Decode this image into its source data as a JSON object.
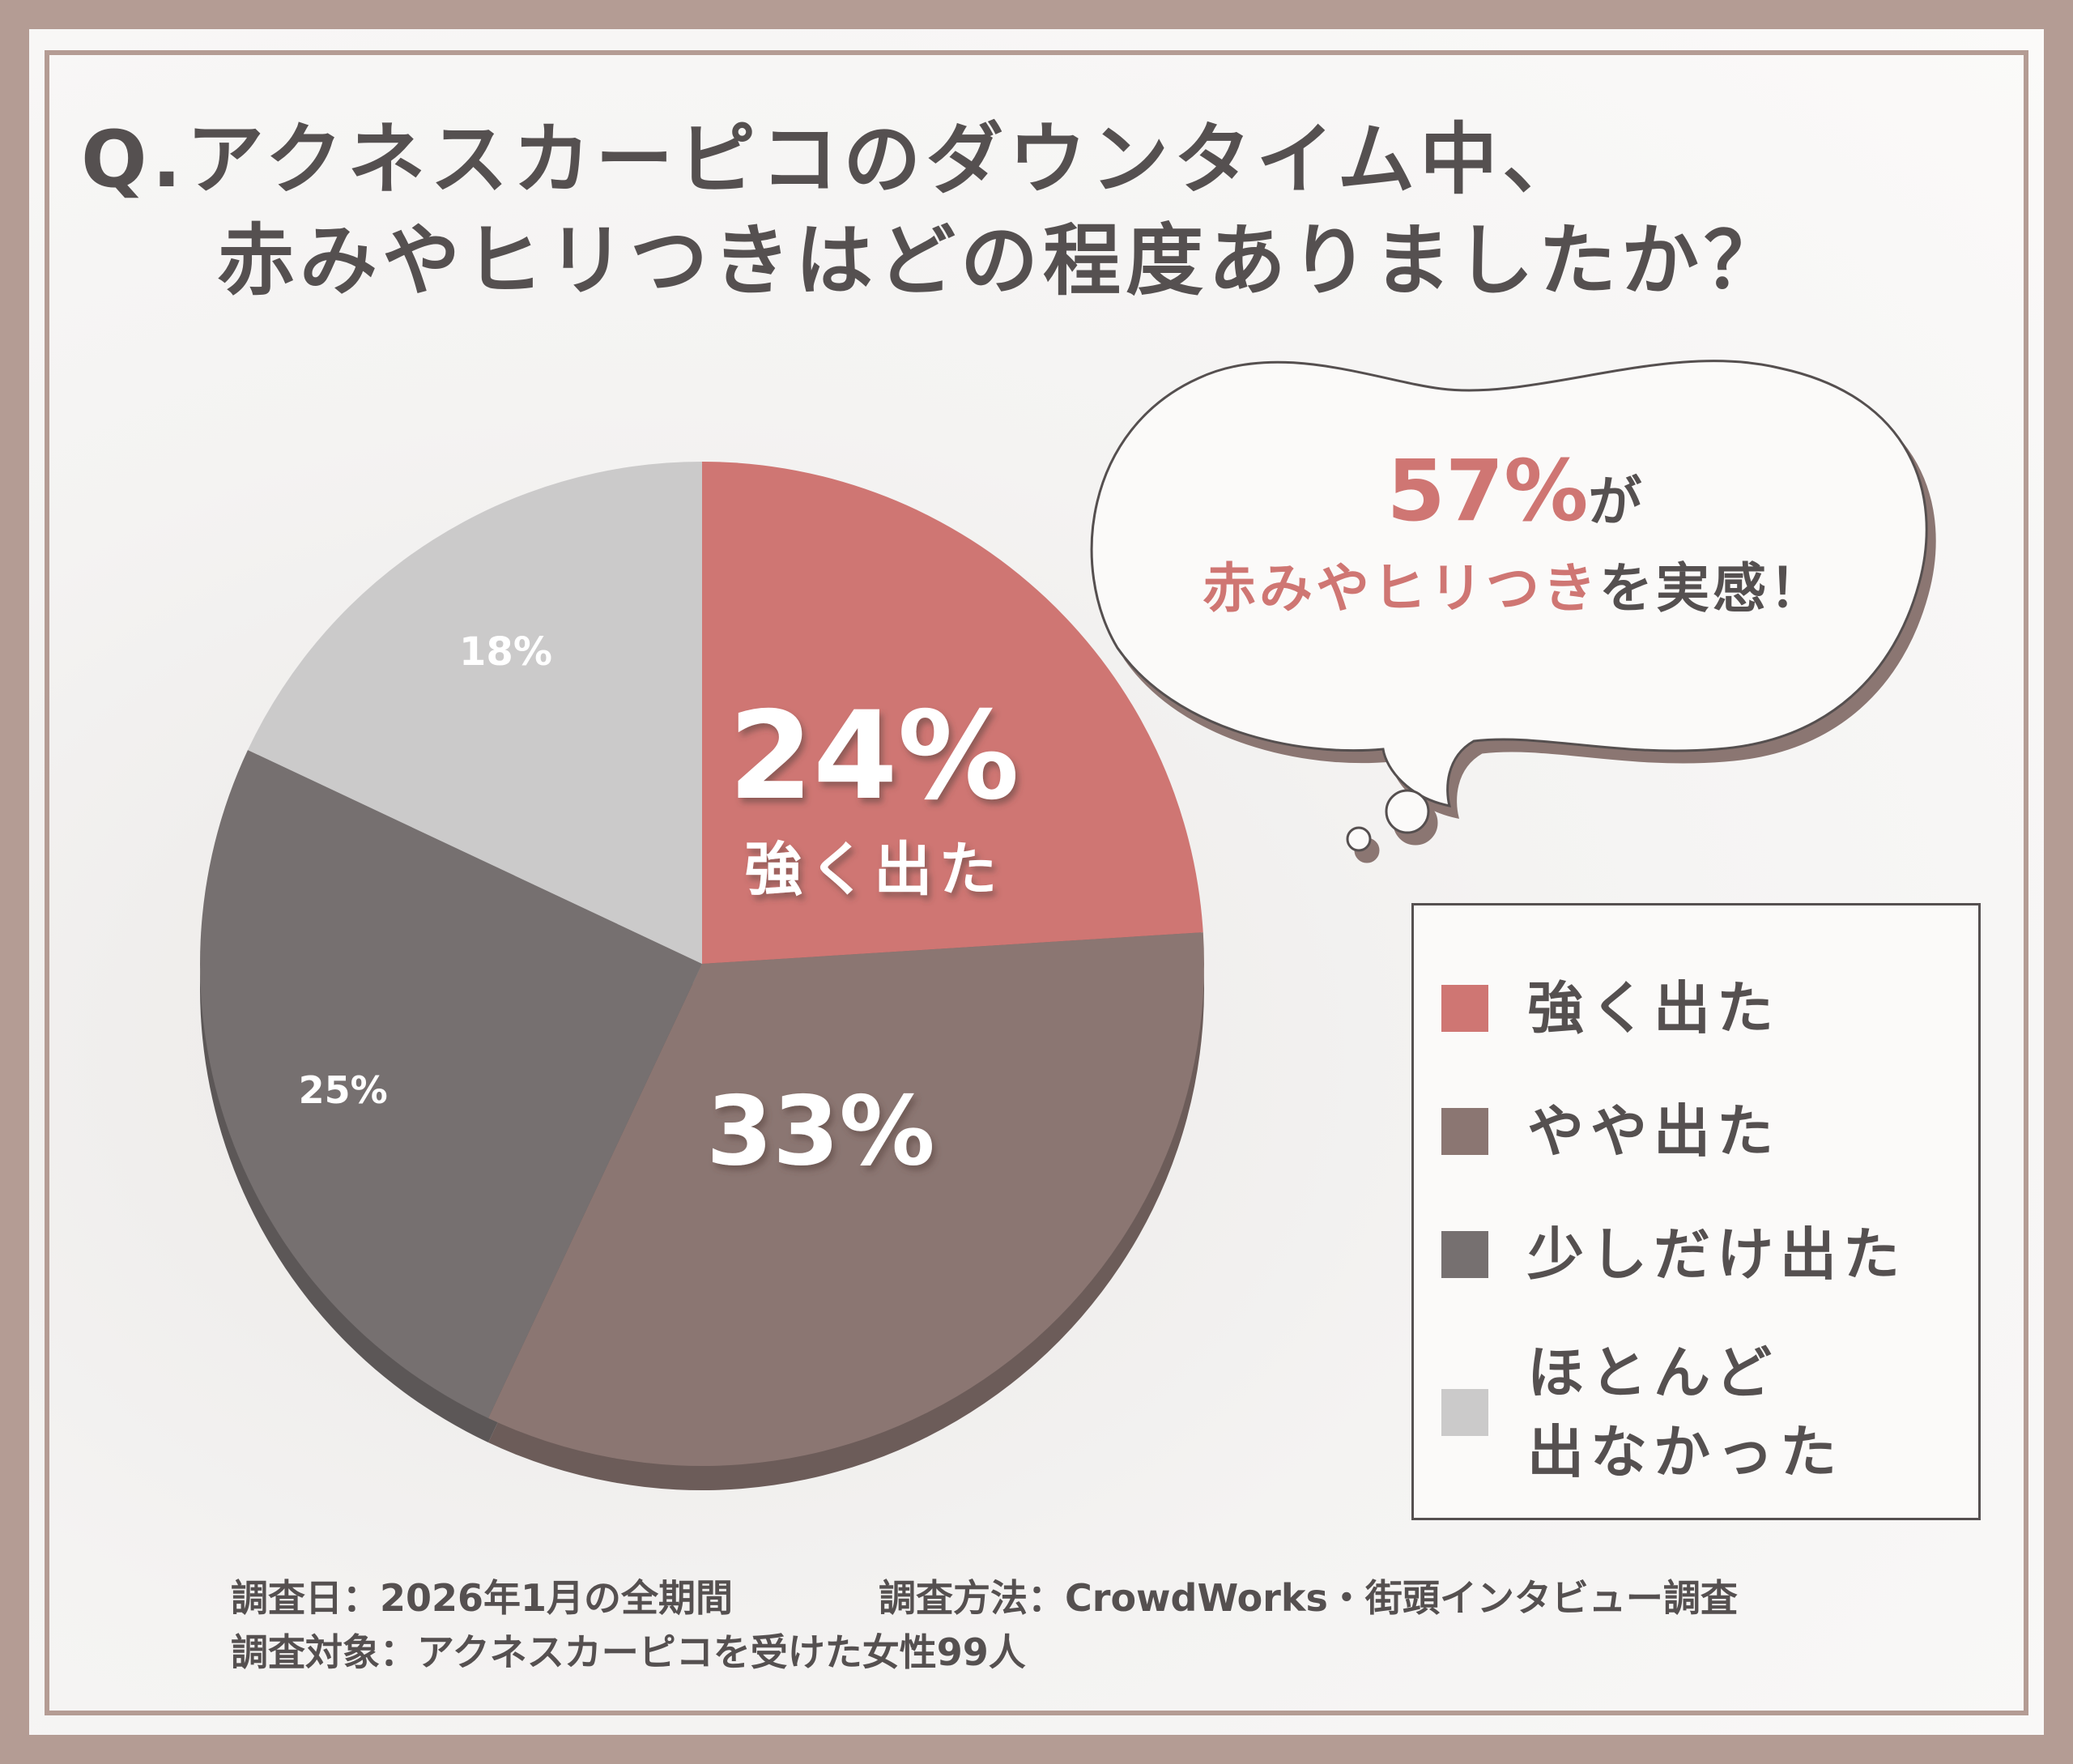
{
  "title": {
    "line1": "Q.アクネスカーピコのダウンタイム中、",
    "line2": "赤みやヒリつきはどの程度ありましたか？"
  },
  "callout": {
    "percent": "57%",
    "suffix": "が",
    "highlight": "赤みやヒリつき",
    "rest": "を実感！"
  },
  "chart_data": {
    "type": "pie",
    "categories": [
      "強く出た",
      "やや出た",
      "少しだけ出た",
      "ほとんど出なかった"
    ],
    "values": [
      24,
      33,
      25,
      18
    ],
    "unit": "%",
    "data_labels": [
      "24%",
      "33%",
      "25%",
      "18%"
    ],
    "slice_captions": [
      "強く出た",
      "",
      "",
      ""
    ],
    "colors": [
      "#cf7673",
      "#8b7672",
      "#767070",
      "#cbcaca"
    ],
    "legend": {
      "placement": "bottom-right",
      "items": [
        "強く出た",
        "やや出た",
        "少しだけ出た",
        "ほとんど\n出なかった"
      ]
    }
  },
  "footer": {
    "date": "調査日：2026年1月の全期間",
    "method": "調査方法：CrowdWorks・街頭インタビュー調査",
    "target": "調査対象：アクネスカーピコを受けた女性99人"
  }
}
